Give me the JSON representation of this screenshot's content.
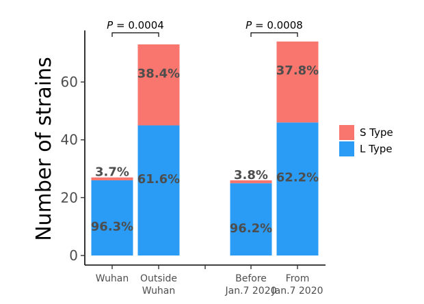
{
  "chart_data": {
    "type": "bar",
    "stacked": true,
    "ylabel": "Number of strains",
    "xlabel": "",
    "ylim": [
      0,
      75
    ],
    "yticks": [
      0,
      20,
      40,
      60
    ],
    "categories": [
      {
        "lines": [
          "Wuhan"
        ],
        "group": 1
      },
      {
        "lines": [
          "Outside",
          "Wuhan"
        ],
        "group": 1
      },
      {
        "lines": [
          "Before",
          "Jan.7 2020"
        ],
        "group": 2
      },
      {
        "lines": [
          "From",
          "Jan.7 2020"
        ],
        "group": 2
      }
    ],
    "series": [
      {
        "name": "L Type",
        "color": "#2b9cf5",
        "values": [
          26,
          45,
          25,
          46
        ],
        "labels": [
          "96.3%",
          "61.6%",
          "96.2%",
          "62.2%"
        ]
      },
      {
        "name": "S Type",
        "color": "#f8766d",
        "values": [
          1,
          28,
          1,
          28
        ],
        "labels": [
          "3.7%",
          "38.4%",
          "3.8%",
          "37.8%"
        ]
      }
    ],
    "annotations": [
      {
        "text": "P = 0.0004",
        "p_label": "P",
        "value_label": "= 0.0004",
        "between": [
          0,
          1
        ]
      },
      {
        "text": "P = 0.0008",
        "p_label": "P",
        "value_label": "= 0.0008",
        "between": [
          2,
          3
        ]
      }
    ],
    "legend": {
      "position": "right",
      "items": [
        "S Type",
        "L Type"
      ]
    },
    "grid": false
  }
}
